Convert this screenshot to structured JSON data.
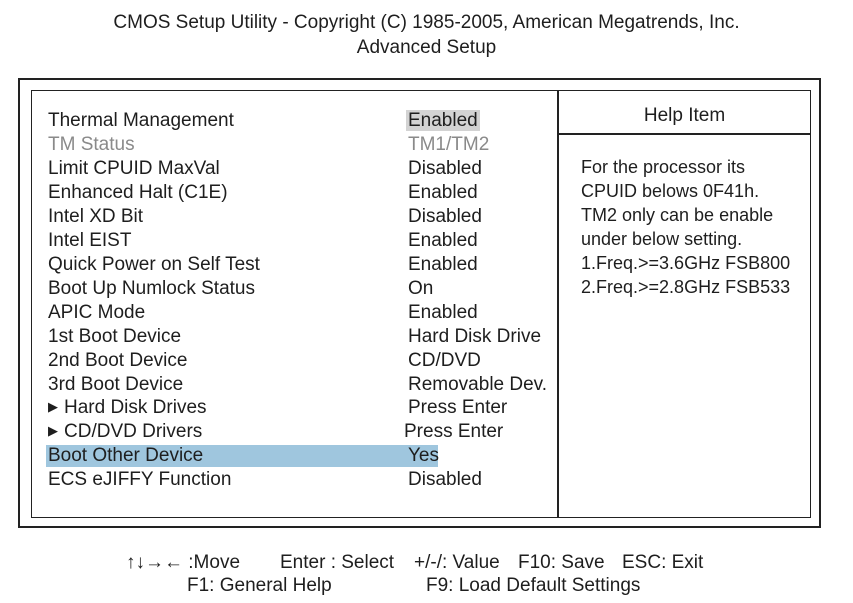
{
  "header": {
    "line1": "CMOS Setup Utility - Copyright  (C)  1985-2005, American Megatrends, Inc.",
    "line2": "Advanced Setup"
  },
  "settings": [
    {
      "label": "Thermal Management",
      "value": "Enabled",
      "state": "value-selected"
    },
    {
      "label": "TM Status",
      "value": "TM1/TM2",
      "state": "disabled"
    },
    {
      "label": "Limit CPUID MaxVal",
      "value": "Disabled"
    },
    {
      "label": "Enhanced Halt (C1E)",
      "value": "Enabled"
    },
    {
      "label": "Intel XD Bit",
      "value": "Disabled"
    },
    {
      "label": "Intel EIST",
      "value": "Enabled"
    },
    {
      "label": "Quick Power on Self Test",
      "value": "Enabled"
    },
    {
      "label": "Boot Up Numlock Status",
      "value": "On"
    },
    {
      "label": "APIC Mode",
      "value": "Enabled"
    },
    {
      "label": "1st Boot Device",
      "value": "Hard Disk Drive"
    },
    {
      "label": "2nd Boot Device",
      "value": "CD/DVD"
    },
    {
      "label": "3rd Boot Device",
      "value": "Removable Dev."
    },
    {
      "label": "Hard Disk Drives",
      "value": "Press Enter",
      "submenu": true
    },
    {
      "label": "CD/DVD Drivers",
      "value": "Press Enter",
      "submenu": true
    },
    {
      "label": "Boot Other Device",
      "value": "Yes",
      "state": "highlighted"
    },
    {
      "label": "ECS eJIFFY Function",
      "value": "Disabled"
    }
  ],
  "help": {
    "title": "Help Item",
    "lines": [
      "For the processor its",
      "CPUID belows 0F41h.",
      "TM2 only can be enable",
      "under below setting.",
      "1.Freq.>=3.6GHz FSB800",
      "2.Freq.>=2.8GHz FSB533"
    ]
  },
  "footer": {
    "move": "↑↓→← :Move",
    "enter": "Enter : Select",
    "value": "+/-/: Value",
    "save": "F10: Save",
    "exit": "ESC: Exit",
    "help": "F1: General Help",
    "defaults": "F9: Load Default Settings"
  },
  "colors": {
    "highlight": "#9fc6de",
    "selected_value": "#d3d3d3",
    "disabled_text": "#8a8a8a"
  }
}
